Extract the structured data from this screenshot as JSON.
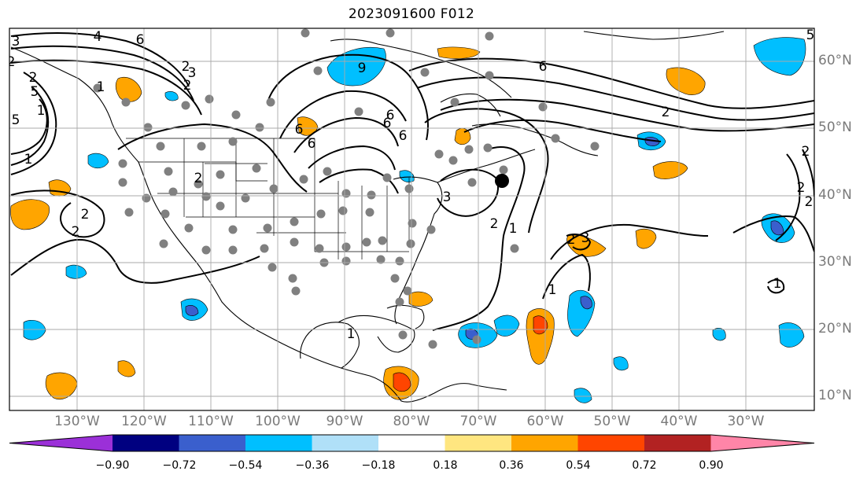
{
  "title": "2023091600 F012",
  "lon_labels": [
    "130°W",
    "120°W",
    "110°W",
    "100°W",
    "90°W",
    "80°W",
    "70°W",
    "60°W",
    "50°W",
    "40°W",
    "30°W"
  ],
  "lat_labels": [
    "60°N",
    "50°N",
    "40°N",
    "30°N",
    "20°N",
    "10°N"
  ],
  "colorbar": {
    "tick_labels": [
      "−0.90",
      "−0.72",
      "−0.54",
      "−0.36",
      "−0.18",
      "0.18",
      "0.36",
      "0.54",
      "0.72",
      "0.90"
    ],
    "colors": [
      "#9b30d8",
      "#000080",
      "#3a5fcd",
      "#00bfff",
      "#b0e0f8",
      "#ffffff",
      "#ffe680",
      "#ffa500",
      "#ff4500",
      "#b22222",
      "#ff85a8"
    ],
    "extend": "both"
  },
  "contour_labels": [
    "3",
    "4",
    "6",
    "3",
    "2",
    "1",
    "2",
    "9",
    "6",
    "6",
    "2",
    "1",
    "2",
    "3",
    "6",
    "6",
    "2",
    "1",
    "2",
    "2",
    "3",
    "2",
    "2",
    "5",
    "5",
    "2",
    "1",
    "1",
    "1",
    "2",
    "5",
    "6",
    "6",
    "1",
    "2",
    "2"
  ]
}
